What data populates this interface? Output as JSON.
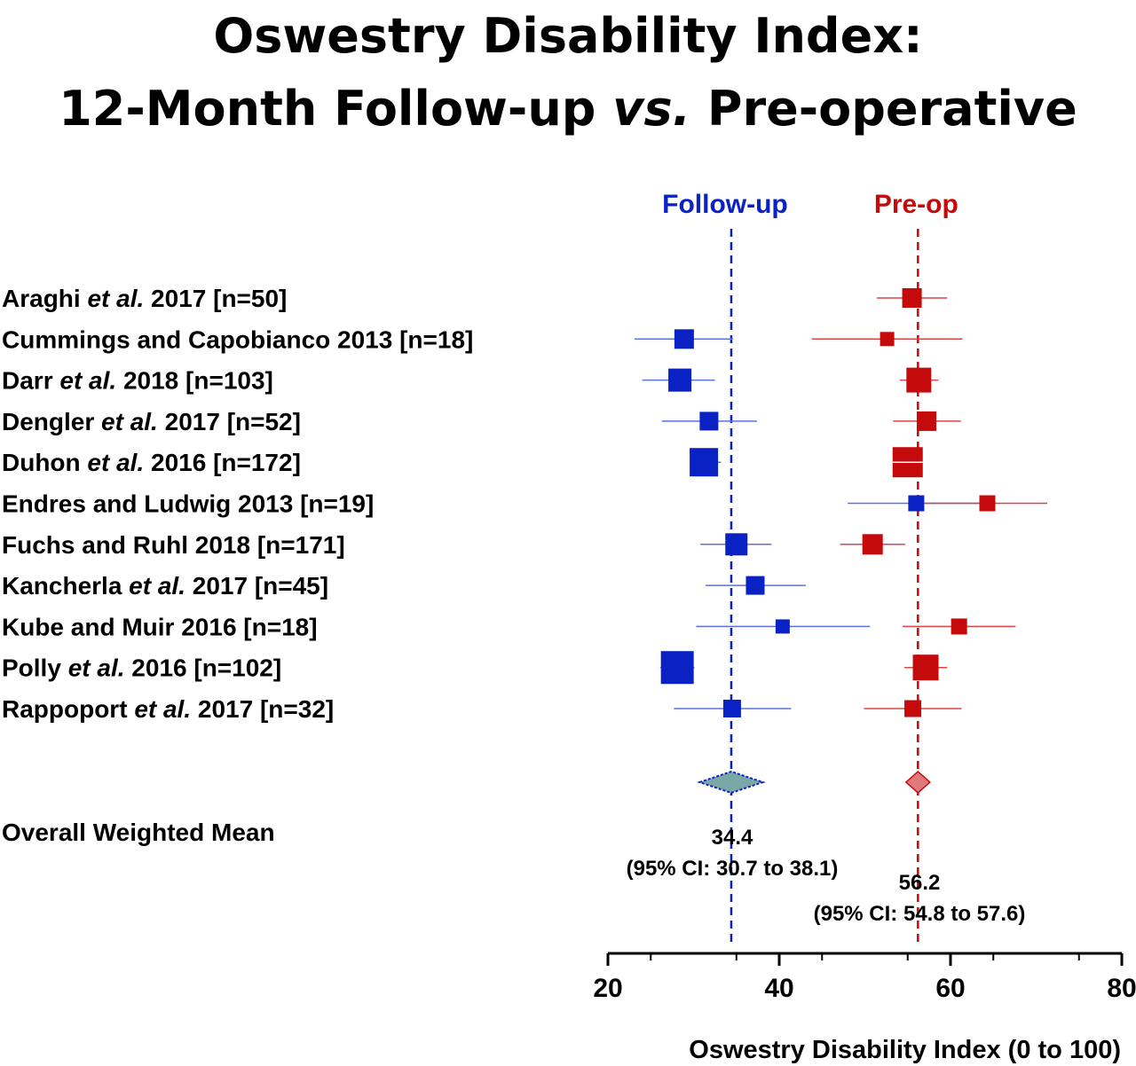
{
  "title": {
    "line1": "Oswestry Disability Index:",
    "line2_pre": "12-Month Follow-up ",
    "line2_italic": "vs.",
    "line2_post": " Pre-operative"
  },
  "colors": {
    "followup": "#0a22c4",
    "preop": "#c40a0a",
    "followup_ci": "#5b72e0",
    "preop_ci": "#d84646",
    "followup_diamond": "#7aa8a6",
    "preop_diamond": "#e07a7a"
  },
  "chart_data": {
    "type": "scatter",
    "subtype": "forest-plot",
    "xlabel": "Oswestry Disability Index (0 to 100)",
    "xlim": [
      20,
      80
    ],
    "xticks": [
      "20",
      "40",
      "60",
      "80"
    ],
    "grid": false,
    "reference_lines": [
      {
        "series": "Follow-up",
        "x": 34.4,
        "style": "dashed"
      },
      {
        "series": "Pre-op",
        "x": 56.2,
        "style": "dashed"
      }
    ],
    "series_labels": [
      "Follow-up",
      "Pre-op"
    ],
    "studies": [
      {
        "label_pre": "Araghi ",
        "label_italic": "et al.",
        "label_post": " 2017 [n=50]",
        "followup": null,
        "preop": {
          "mean": 55.5,
          "lo": 51.4,
          "hi": 59.6,
          "weight": 22
        }
      },
      {
        "label_pre": "Cummings and Capobianco 2013 [n=18]",
        "label_italic": "",
        "label_post": "",
        "followup": {
          "mean": 28.9,
          "lo": 23.1,
          "hi": 34.6,
          "weight": 22
        },
        "preop": {
          "mean": 52.6,
          "lo": 43.8,
          "hi": 61.4,
          "weight": 16
        }
      },
      {
        "label_pre": "Darr ",
        "label_italic": "et al.",
        "label_post": " 2018 [n=103]",
        "followup": {
          "mean": 28.4,
          "lo": 24.0,
          "hi": 32.5,
          "weight": 26
        },
        "preop": {
          "mean": 56.3,
          "lo": 54.1,
          "hi": 58.6,
          "weight": 28
        }
      },
      {
        "label_pre": "Dengler ",
        "label_italic": "et al.",
        "label_post": " 2017 [n=52]",
        "followup": {
          "mean": 31.8,
          "lo": 26.3,
          "hi": 37.4,
          "weight": 21
        },
        "preop": {
          "mean": 57.2,
          "lo": 53.3,
          "hi": 61.2,
          "weight": 22
        }
      },
      {
        "label_pre": "Duhon ",
        "label_italic": "et al.",
        "label_post": " 2016 [n=172]",
        "followup": {
          "mean": 31.2,
          "lo": 29.6,
          "hi": 33.2,
          "weight": 32
        },
        "preop": {
          "mean": 55.0,
          "lo": 53.6,
          "hi": 56.7,
          "weight": 34
        }
      },
      {
        "label_pre": "Endres and Ludwig 2013 [n=19]",
        "label_italic": "",
        "label_post": "",
        "followup": {
          "mean": 56.0,
          "lo": 48.0,
          "hi": 64.0,
          "weight": 18
        },
        "preop": {
          "mean": 64.3,
          "lo": 57.0,
          "hi": 71.3,
          "weight": 18
        }
      },
      {
        "label_pre": "Fuchs and Ruhl 2018 [n=171]",
        "label_italic": "",
        "label_post": "",
        "followup": {
          "mean": 35.0,
          "lo": 30.8,
          "hi": 39.1,
          "weight": 25
        },
        "preop": {
          "mean": 50.9,
          "lo": 47.1,
          "hi": 54.7,
          "weight": 23
        }
      },
      {
        "label_pre": "Kancherla ",
        "label_italic": "et al.",
        "label_post": " 2017 [n=45]",
        "followup": {
          "mean": 37.2,
          "lo": 31.4,
          "hi": 43.1,
          "weight": 21
        },
        "preop": null
      },
      {
        "label_pre": "Kube and Muir 2016 [n=18]",
        "label_italic": "",
        "label_post": "",
        "followup": {
          "mean": 40.4,
          "lo": 30.3,
          "hi": 50.6,
          "weight": 16
        },
        "preop": {
          "mean": 61.0,
          "lo": 54.4,
          "hi": 67.6,
          "weight": 18
        }
      },
      {
        "label_pre": "Polly ",
        "label_italic": "et al.",
        "label_post": " 2016 [n=102]",
        "followup": {
          "mean": 28.1,
          "lo": 26.1,
          "hi": 30.1,
          "weight": 37
        },
        "preop": {
          "mean": 57.1,
          "lo": 54.6,
          "hi": 59.6,
          "weight": 29
        }
      },
      {
        "label_pre": "Rappoport ",
        "label_italic": "et al.",
        "label_post": " 2017 [n=32]",
        "followup": {
          "mean": 34.5,
          "lo": 27.7,
          "hi": 41.4,
          "weight": 20
        },
        "preop": {
          "mean": 55.6,
          "lo": 49.9,
          "hi": 61.3,
          "weight": 19
        }
      }
    ],
    "overall": {
      "label": "Overall Weighted Mean",
      "followup": {
        "mean": 34.4,
        "lo": 30.7,
        "hi": 38.1,
        "value_text": "34.4",
        "ci_text": "(95% CI: 30.7 to 38.1)"
      },
      "preop": {
        "mean": 56.2,
        "lo": 54.8,
        "hi": 57.6,
        "value_text": "56.2",
        "ci_text": "(95% CI: 54.8 to 57.6)"
      }
    }
  }
}
